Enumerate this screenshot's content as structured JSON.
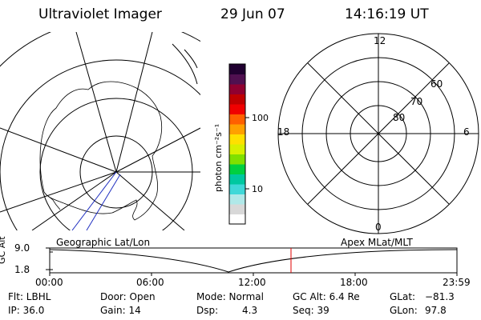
{
  "header": {
    "instrument": "Ultraviolet Imager",
    "date": "29 Jun 07",
    "time": "14:16:19 UT"
  },
  "colorbar": {
    "ticks": [
      "100",
      "10"
    ],
    "unit": "photon cm⁻²s⁻¹",
    "colors": [
      "#ffffff",
      "#d8d8d8",
      "#b0e8e8",
      "#40d8d8",
      "#00c8a0",
      "#00d040",
      "#80e000",
      "#d8f000",
      "#ffe000",
      "#ffa000",
      "#ff6000",
      "#f00000",
      "#c00000",
      "#900030",
      "#501050",
      "#200030"
    ]
  },
  "polar_plot": {
    "labels": {
      "top": "12",
      "left": "18",
      "right": "6",
      "bottom": "0"
    },
    "latitude_labels": [
      "60",
      "70",
      "80"
    ]
  },
  "timeline": {
    "y_axis_label": "GC Alt",
    "y_ticks": [
      "9.0",
      "1.8"
    ],
    "left_title": "Geographic Lat/Lon",
    "right_title": "Apex MLat/MLT",
    "x_ticks": [
      "00:00",
      "06:00",
      "12:00",
      "18:00",
      "23:59"
    ],
    "cursor_time": "14:16:19"
  },
  "info": {
    "filter": "Flt: LBHL",
    "ip": "IP: 36.0",
    "door": "Door: Open",
    "gain": "Gain: 14",
    "mode": "Mode: Normal",
    "dsp_label": "Dsp:",
    "dsp_value": "4.3",
    "gc_alt": "GC Alt: 6.4 Re",
    "seq": "Seq: 39",
    "glat_label": "GLat:",
    "glat_value": "−81.3",
    "glon_label": "GLon:",
    "glon_value": "97.8"
  },
  "colors": {
    "cursor": "#e00000",
    "track": "#2030c0"
  }
}
